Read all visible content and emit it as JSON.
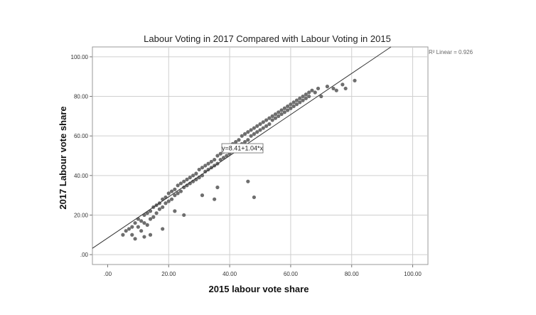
{
  "chart_data": {
    "type": "scatter",
    "title": "Labour Voting in 2017 Compared with Labour Voting in 2015",
    "xlabel": "2015 labour vote share",
    "ylabel": "2017 Labour vote share",
    "x_ticks": [
      ".00",
      "20.00",
      "40.00",
      "60.00",
      "80.00",
      "100.00"
    ],
    "y_ticks": [
      ".00",
      "20.00",
      "40.00",
      "60.00",
      "80.00",
      "100.00"
    ],
    "xlim": [
      -5,
      105
    ],
    "ylim": [
      -5,
      105
    ],
    "grid": true,
    "point_color": "#6e6e6e",
    "fit_line": {
      "label": "y=8.41+1.04*x",
      "intercept": 8.41,
      "slope": 1.04,
      "r_squared_label": "R² Linear = 0.926",
      "color": "#333333"
    },
    "x": [
      5,
      6,
      7,
      8,
      8,
      9,
      10,
      10,
      11,
      11,
      12,
      12,
      13,
      13,
      14,
      14,
      15,
      15,
      16,
      16,
      17,
      17,
      18,
      18,
      19,
      19,
      20,
      20,
      21,
      21,
      22,
      22,
      23,
      23,
      24,
      24,
      25,
      25,
      26,
      26,
      27,
      27,
      28,
      28,
      29,
      29,
      30,
      30,
      31,
      31,
      32,
      32,
      33,
      33,
      34,
      34,
      35,
      35,
      36,
      36,
      37,
      37,
      38,
      38,
      39,
      39,
      40,
      40,
      41,
      41,
      42,
      42,
      43,
      43,
      44,
      44,
      45,
      45,
      46,
      46,
      47,
      47,
      48,
      48,
      49,
      49,
      50,
      50,
      51,
      51,
      52,
      52,
      53,
      53,
      54,
      54,
      55,
      55,
      56,
      56,
      57,
      57,
      58,
      58,
      59,
      59,
      60,
      60,
      61,
      61,
      62,
      62,
      63,
      63,
      64,
      64,
      65,
      65,
      66,
      66,
      67,
      68,
      69,
      70,
      72,
      74,
      75,
      77,
      78,
      81,
      46,
      48,
      22,
      25,
      35,
      14,
      18,
      31,
      36,
      9,
      12
    ],
    "y": [
      10,
      12,
      13,
      14,
      10,
      16,
      14,
      18,
      17,
      12,
      20,
      16,
      21,
      15,
      22,
      18,
      24,
      19,
      25,
      21,
      26,
      23,
      28,
      24,
      29,
      26,
      31,
      27,
      32,
      28,
      33,
      30,
      35,
      31,
      36,
      32,
      37,
      34,
      38,
      35,
      39,
      36,
      40,
      37,
      41,
      38,
      43,
      39,
      44,
      40,
      45,
      42,
      46,
      43,
      47,
      44,
      48,
      45,
      50,
      46,
      51,
      48,
      52,
      49,
      54,
      50,
      55,
      51,
      56,
      53,
      57,
      54,
      58,
      55,
      60,
      56,
      61,
      57,
      62,
      58,
      63,
      60,
      64,
      61,
      65,
      62,
      66,
      63,
      67,
      64,
      68,
      65,
      69,
      66,
      70,
      68,
      71,
      69,
      72,
      70,
      73,
      71,
      74,
      72,
      75,
      73,
      76,
      74,
      77,
      75,
      78,
      76,
      79,
      77,
      80,
      78,
      81,
      79,
      82,
      80,
      83,
      82,
      84,
      80,
      85,
      84,
      83,
      86,
      84,
      88,
      37,
      29,
      22,
      20,
      28,
      10,
      13,
      30,
      34,
      8,
      9
    ]
  }
}
